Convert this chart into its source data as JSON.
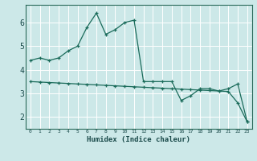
{
  "line1_x": [
    0,
    1,
    2,
    3,
    4,
    5,
    6,
    7,
    8,
    9,
    10,
    11,
    12,
    13,
    14,
    15,
    16,
    17,
    18,
    19,
    20,
    21,
    22,
    23
  ],
  "line1_y": [
    4.4,
    4.5,
    4.4,
    4.5,
    4.8,
    5.0,
    5.8,
    6.4,
    5.5,
    5.7,
    6.0,
    6.1,
    3.5,
    3.5,
    3.5,
    3.5,
    2.7,
    2.9,
    3.2,
    3.2,
    3.1,
    3.2,
    3.4,
    1.8
  ],
  "line2_x": [
    0,
    1,
    2,
    3,
    4,
    5,
    6,
    7,
    8,
    9,
    10,
    11,
    12,
    13,
    14,
    15,
    16,
    17,
    18,
    19,
    20,
    21,
    22,
    23
  ],
  "line2_y": [
    3.5,
    3.48,
    3.46,
    3.44,
    3.42,
    3.4,
    3.38,
    3.36,
    3.34,
    3.32,
    3.3,
    3.28,
    3.26,
    3.24,
    3.22,
    3.2,
    3.18,
    3.16,
    3.14,
    3.12,
    3.1,
    3.08,
    2.6,
    1.8
  ],
  "line_color": "#1a6b5a",
  "bg_color": "#cce8e8",
  "grid_color": "#ffffff",
  "xlabel": "Humidex (Indice chaleur)",
  "xlim": [
    -0.5,
    23.5
  ],
  "ylim": [
    1.5,
    6.75
  ],
  "yticks": [
    2,
    3,
    4,
    5,
    6
  ],
  "xticks": [
    0,
    1,
    2,
    3,
    4,
    5,
    6,
    7,
    8,
    9,
    10,
    11,
    12,
    13,
    14,
    15,
    16,
    17,
    18,
    19,
    20,
    21,
    22,
    23
  ]
}
